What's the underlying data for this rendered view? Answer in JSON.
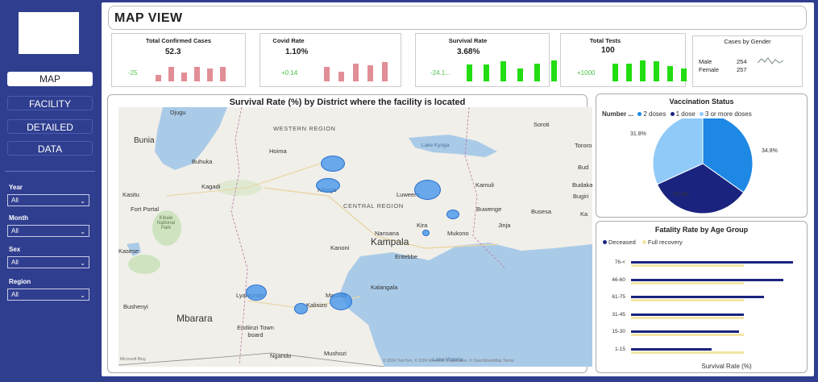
{
  "nav": {
    "items": [
      {
        "label": "MAP",
        "active": true
      },
      {
        "label": "FACILITY",
        "active": false
      },
      {
        "label": "DETAILED",
        "active": false
      },
      {
        "label": "DATA",
        "active": false
      }
    ]
  },
  "filters": {
    "year": {
      "label": "Year",
      "value": "All"
    },
    "month": {
      "label": "Month",
      "value": "All"
    },
    "sex": {
      "label": "Sex",
      "value": "All"
    },
    "region": {
      "label": "Region",
      "value": "All"
    }
  },
  "header": {
    "title": "MAP VIEW"
  },
  "kpis": {
    "confirmed": {
      "title": "Total Confirmed Cases",
      "value": "52.3",
      "delta": "-25",
      "bar_color": "#e28e96",
      "bars": [
        0.35,
        0.8,
        0.5,
        0.8,
        0.75,
        0.8
      ]
    },
    "covid_rate": {
      "title": "Covid Rate",
      "value": "1.10%",
      "delta": "+0.14",
      "bar_color": "#e28e96",
      "bars": [
        0.75,
        0.5,
        0.9,
        0.85,
        1.0
      ]
    },
    "survival": {
      "title": "Survival Rate",
      "value": "3.68%",
      "delta": "-24.1...",
      "bar_color": "#22dd11",
      "bars": [
        0.8,
        0.8,
        0.95,
        0.6,
        0.85,
        1.0
      ]
    },
    "tests": {
      "title": "Total Tests",
      "value": "100",
      "delta": "+1000",
      "bar_color": "#22dd11",
      "bars": [
        0.85,
        0.85,
        1.0,
        0.95,
        0.75,
        0.6
      ]
    }
  },
  "gender": {
    "title": "Cases by Gender",
    "rows": [
      {
        "label": "Male",
        "value": "254"
      },
      {
        "label": "Female",
        "value": "257"
      }
    ]
  },
  "map": {
    "title": "Survival Rate (%) by District where the facility is located",
    "labels": [
      "Djugu",
      "Bunia",
      "Hoima",
      "Buhuka",
      "Kagadi",
      "Kiboga",
      "Kasitu",
      "Fort Portal",
      "Kibale National Park",
      "Kasese",
      "Kanoni",
      "Kampala",
      "Entebbe",
      "Nansana",
      "Kira",
      "Mukono",
      "Luweero",
      "Kamuli",
      "Buwenge",
      "Busesa",
      "Jinja",
      "Lake Kyoga",
      "Soroti",
      "Budaka",
      "Bugiri",
      "Kalangala",
      "Masaka",
      "Kalisizo",
      "Lyantonde",
      "Bushenyi",
      "Mbarara",
      "Endiinzi Town board",
      "Ngando",
      "Mushozi",
      "Lake Victoria",
      "Bud",
      "Tororo",
      "Ka"
    ],
    "regions": [
      "WESTERN REGION",
      "CENTRAL REGION"
    ],
    "attribution": "© 2024 TomTom, © 2024 Microsoft Corporation, © OpenStreetMap   Terms",
    "logo_text": "Microsoft Bing"
  },
  "vaccination": {
    "title": "Vaccination Status",
    "legend_title": "Number ...",
    "legend": [
      {
        "label": "2 doses",
        "color": "#1e88e5"
      },
      {
        "label": "1 dose",
        "color": "#1a237e"
      },
      {
        "label": "3 or more doses",
        "color": "#90caf9"
      }
    ],
    "slices": [
      {
        "label": "34.8%",
        "value": 34.8,
        "color": "#1e88e5"
      },
      {
        "label": "33.4%",
        "value": 33.4,
        "color": "#1a237e"
      },
      {
        "label": "31.8%",
        "value": 31.8,
        "color": "#90caf9"
      }
    ]
  },
  "fatality": {
    "title": "Fatality Rate by Age Group",
    "legend": [
      {
        "label": "Deceased",
        "color": "#1a237e"
      },
      {
        "label": "Full recovery",
        "color": "#f3e5a5"
      }
    ],
    "xlabel": "Survival Rate (%)",
    "groups": [
      {
        "label": "76-<",
        "deceased": 0.95,
        "recovery": 0.66
      },
      {
        "label": "46-60",
        "deceased": 0.89,
        "recovery": 0.66
      },
      {
        "label": "61-75",
        "deceased": 0.78,
        "recovery": 0.66
      },
      {
        "label": "31-45",
        "deceased": 0.66,
        "recovery": 0.66
      },
      {
        "label": "15-30",
        "deceased": 0.63,
        "recovery": 0.66
      },
      {
        "label": "1-15",
        "deceased": 0.47,
        "recovery": 0.66
      }
    ]
  }
}
